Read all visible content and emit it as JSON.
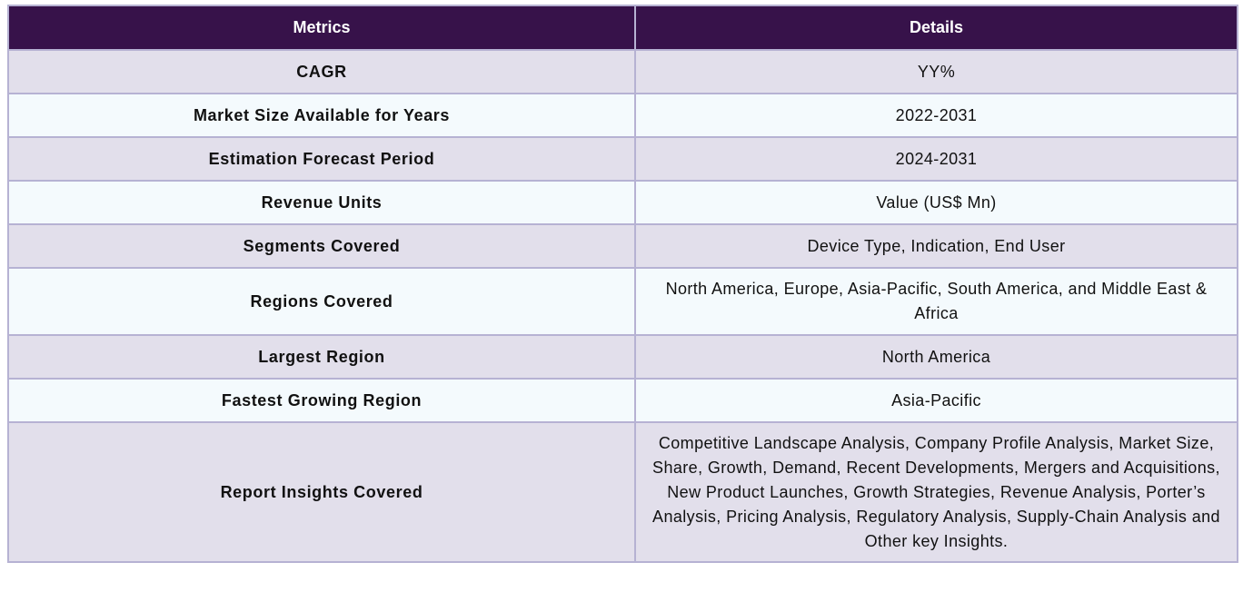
{
  "table": {
    "headers": [
      "Metrics",
      "Details"
    ],
    "rows": [
      {
        "metric": "CAGR",
        "detail": "YY%"
      },
      {
        "metric": "Market Size Available for Years",
        "detail": "2022-2031"
      },
      {
        "metric": "Estimation Forecast Period",
        "detail": "2024-2031"
      },
      {
        "metric": "Revenue Units",
        "detail": "Value (US$ Mn)"
      },
      {
        "metric": "Segments Covered",
        "detail": "Device Type, Indication, End User"
      },
      {
        "metric": "Regions Covered",
        "detail": "North America, Europe, Asia-Pacific, South America, and Middle East & Africa"
      },
      {
        "metric": "Largest Region",
        "detail": "North America"
      },
      {
        "metric": "Fastest Growing Region",
        "detail": "Asia-Pacific"
      },
      {
        "metric": "Report Insights Covered",
        "detail": "Competitive Landscape Analysis, Company Profile Analysis, Market Size, Share, Growth, Demand, Recent Developments, Mergers and Acquisitions, New Product Launches, Growth Strategies, Revenue Analysis, Porter’s Analysis, Pricing Analysis, Regulatory Analysis, Supply-Chain Analysis and Other key Insights."
      }
    ]
  },
  "colors": {
    "header_bg": "#37124a",
    "row_odd_bg": "#e2dfeb",
    "row_even_bg": "#f4fafd",
    "border": "#b6b2d3"
  }
}
